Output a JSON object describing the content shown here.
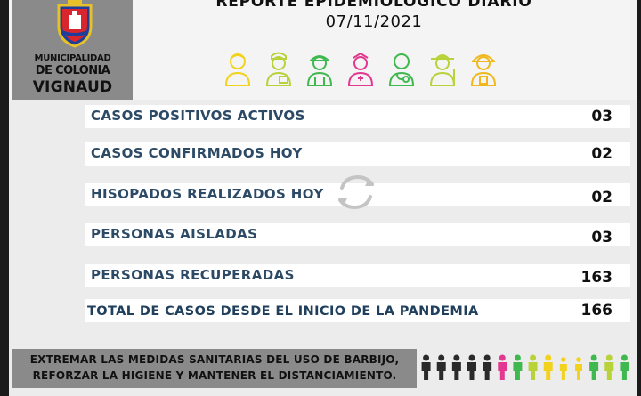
{
  "header": {
    "logo": {
      "line1": "MUNICIPALIDAD",
      "line2": "DE COLONIA",
      "line3": "VIGNAUD",
      "icon": "coat-of-arms-icon"
    },
    "title": "REPORTE EPIDEMIOLÓGICO DIARIO",
    "date": "07/11/2021",
    "workers": [
      {
        "icon": "worker-icon",
        "color": "#f2d21c"
      },
      {
        "icon": "cook-icon",
        "color": "#b8d23a"
      },
      {
        "icon": "builder-icon",
        "color": "#3fb84f"
      },
      {
        "icon": "nurse-icon",
        "color": "#e2388f"
      },
      {
        "icon": "doctor-icon",
        "color": "#3fb84f"
      },
      {
        "icon": "farmer-icon",
        "color": "#b8d23a"
      },
      {
        "icon": "firefighter-icon",
        "color": "#f0b81c"
      }
    ]
  },
  "stats": [
    {
      "label": "CASOS POSITIVOS ACTIVOS",
      "value": "03"
    },
    {
      "label": "CASOS CONFIRMADOS HOY",
      "value": "02"
    },
    {
      "label": "HISOPADOS REALIZADOS HOY",
      "value": "02"
    },
    {
      "label": "PERSONAS AISLADAS",
      "value": "03"
    },
    {
      "label": "PERSONAS RECUPERADAS",
      "value": "163"
    },
    {
      "label": "TOTAL DE CASOS DESDE EL INICIO DE LA PANDEMIA",
      "value": "166"
    }
  ],
  "footer": {
    "line1": "EXTREMAR LAS MEDIDAS SANITARIAS DEL USO DE BARBIJO,",
    "line2": "REFORZAR LA HIGIENE Y MANTENER EL DISTANCIAMIENTO.",
    "people_colors": [
      "#2a2a2a",
      "#2a2a2a",
      "#2a2a2a",
      "#2a2a2a",
      "#2a2a2a",
      "#e2388f",
      "#3fb84f",
      "#b8d23a",
      "#f2d21c",
      "#f2d21c",
      "#f2d21c",
      "#3fb84f",
      "#b8d23a",
      "#3fb84f"
    ]
  },
  "colors": {
    "label": "#2c4a66",
    "logo_bg": "#8a8a8a",
    "row_bg": "#ffffff"
  }
}
